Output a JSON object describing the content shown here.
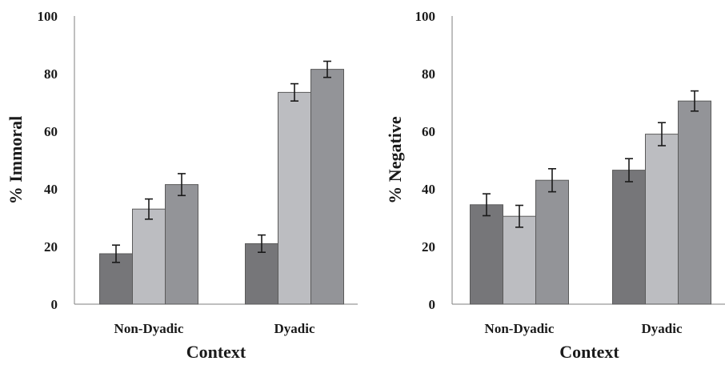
{
  "chart_data": [
    {
      "type": "bar",
      "title": "",
      "xlabel": "Context",
      "ylabel": "% Immoral",
      "ylim": [
        0,
        100
      ],
      "yticks": [
        0,
        20,
        40,
        60,
        80,
        100
      ],
      "categories": [
        "Non-Dyadic",
        "Dyadic"
      ],
      "grid": false,
      "legend": "none",
      "series": [
        {
          "color": "#767679",
          "values": [
            17.5,
            21.0
          ],
          "errors": [
            3.0,
            3.0
          ]
        },
        {
          "color": "#bcbdc1",
          "values": [
            33.0,
            73.5
          ],
          "errors": [
            3.5,
            3.0
          ]
        },
        {
          "color": "#939498",
          "values": [
            41.5,
            81.5
          ],
          "errors": [
            3.8,
            2.8
          ]
        }
      ]
    },
    {
      "type": "bar",
      "title": "",
      "xlabel": "Context",
      "ylabel": "% Negative",
      "ylim": [
        0,
        100
      ],
      "yticks": [
        0,
        20,
        40,
        60,
        80,
        100
      ],
      "categories": [
        "Non-Dyadic",
        "Dyadic"
      ],
      "grid": false,
      "legend": "none",
      "series": [
        {
          "color": "#767679",
          "values": [
            34.5,
            46.5
          ],
          "errors": [
            3.8,
            4.0
          ]
        },
        {
          "color": "#bcbdc1",
          "values": [
            30.5,
            59.0
          ],
          "errors": [
            3.8,
            4.0
          ]
        },
        {
          "color": "#939498",
          "values": [
            43.0,
            70.5
          ],
          "errors": [
            4.0,
            3.5
          ]
        }
      ]
    }
  ]
}
